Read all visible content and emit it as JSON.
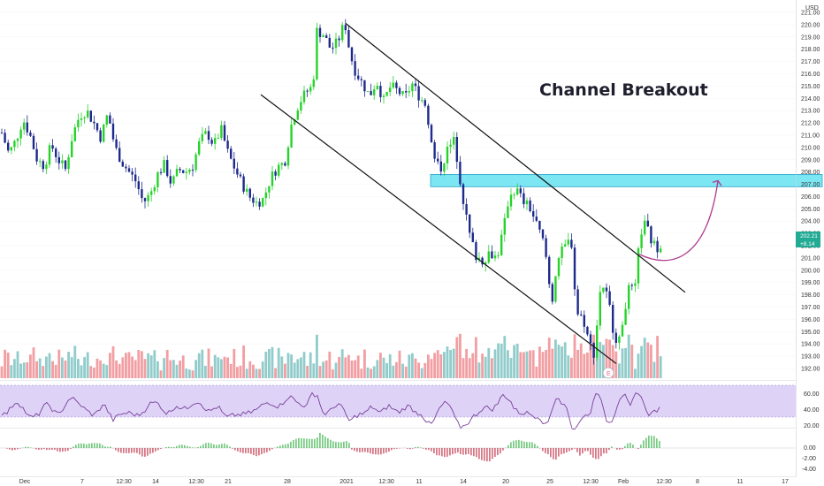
{
  "chart_data": {
    "type": "candlestick",
    "title": "Channel Breakout",
    "currency": "USD",
    "price_axis": {
      "min": 191.5,
      "max": 221.5,
      "ticks": [
        "221.00",
        "220.00",
        "219.00",
        "218.00",
        "217.00",
        "216.00",
        "215.00",
        "214.00",
        "213.00",
        "212.00",
        "211.00",
        "210.00",
        "209.00",
        "208.00",
        "207.00",
        "206.00",
        "205.00",
        "204.00",
        "203.00",
        "202.00",
        "201.00",
        "200.00",
        "199.00",
        "198.00",
        "197.00",
        "196.00",
        "195.00",
        "194.00",
        "193.00",
        "192.00"
      ],
      "last_price": "202.21",
      "last_change": "+8.14"
    },
    "x_axis_labels": [
      {
        "label": "Dec",
        "x": 28
      },
      {
        "label": "7",
        "x": 93
      },
      {
        "label": "12:30",
        "x": 140
      },
      {
        "label": "14",
        "x": 176
      },
      {
        "label": "12:30",
        "x": 222
      },
      {
        "label": "21",
        "x": 258
      },
      {
        "label": "28",
        "x": 325
      },
      {
        "label": "2021",
        "x": 392
      },
      {
        "label": "12:30",
        "x": 437
      },
      {
        "label": "11",
        "x": 474
      },
      {
        "label": "14",
        "x": 524
      },
      {
        "label": "20",
        "x": 572
      },
      {
        "label": "25",
        "x": 622
      },
      {
        "label": "12:30",
        "x": 668
      },
      {
        "label": "Feb",
        "x": 705
      },
      {
        "label": "12:30",
        "x": 751
      },
      {
        "label": "8",
        "x": 789
      },
      {
        "label": "11",
        "x": 837
      },
      {
        "label": "17",
        "x": 888
      }
    ],
    "price_path": [
      {
        "x": 2,
        "p": 211.2
      },
      {
        "x": 10,
        "p": 209.5
      },
      {
        "x": 18,
        "p": 210.6
      },
      {
        "x": 26,
        "p": 212.3
      },
      {
        "x": 34,
        "p": 211.0
      },
      {
        "x": 42,
        "p": 209.0
      },
      {
        "x": 50,
        "p": 208.5
      },
      {
        "x": 58,
        "p": 210.2
      },
      {
        "x": 66,
        "p": 209.0
      },
      {
        "x": 74,
        "p": 208.2
      },
      {
        "x": 82,
        "p": 211.0
      },
      {
        "x": 90,
        "p": 212.6
      },
      {
        "x": 98,
        "p": 213.0
      },
      {
        "x": 106,
        "p": 212.0
      },
      {
        "x": 114,
        "p": 210.8
      },
      {
        "x": 122,
        "p": 212.8
      },
      {
        "x": 130,
        "p": 210.0
      },
      {
        "x": 138,
        "p": 208.8
      },
      {
        "x": 146,
        "p": 208.0
      },
      {
        "x": 154,
        "p": 207.2
      },
      {
        "x": 162,
        "p": 205.5
      },
      {
        "x": 170,
        "p": 206.2
      },
      {
        "x": 178,
        "p": 207.8
      },
      {
        "x": 186,
        "p": 208.6
      },
      {
        "x": 194,
        "p": 207.0
      },
      {
        "x": 202,
        "p": 208.2
      },
      {
        "x": 210,
        "p": 208.0
      },
      {
        "x": 218,
        "p": 208.5
      },
      {
        "x": 226,
        "p": 210.5
      },
      {
        "x": 234,
        "p": 211.2
      },
      {
        "x": 242,
        "p": 210.2
      },
      {
        "x": 250,
        "p": 211.5
      },
      {
        "x": 258,
        "p": 209.5
      },
      {
        "x": 266,
        "p": 208.2
      },
      {
        "x": 274,
        "p": 207.0
      },
      {
        "x": 282,
        "p": 206.0
      },
      {
        "x": 290,
        "p": 205.5
      },
      {
        "x": 298,
        "p": 205.8
      },
      {
        "x": 306,
        "p": 207.5
      },
      {
        "x": 314,
        "p": 208.4
      },
      {
        "x": 322,
        "p": 208.8
      },
      {
        "x": 330,
        "p": 212.0
      },
      {
        "x": 338,
        "p": 213.6
      },
      {
        "x": 346,
        "p": 214.5
      },
      {
        "x": 354,
        "p": 215.0
      },
      {
        "x": 358,
        "p": 219.5
      },
      {
        "x": 366,
        "p": 219.2
      },
      {
        "x": 374,
        "p": 218.0
      },
      {
        "x": 382,
        "p": 218.6
      },
      {
        "x": 390,
        "p": 220.2
      },
      {
        "x": 396,
        "p": 217.6
      },
      {
        "x": 402,
        "p": 216.2
      },
      {
        "x": 410,
        "p": 215.2
      },
      {
        "x": 418,
        "p": 214.2
      },
      {
        "x": 426,
        "p": 215.4
      },
      {
        "x": 434,
        "p": 213.8
      },
      {
        "x": 442,
        "p": 215.0
      },
      {
        "x": 450,
        "p": 214.6
      },
      {
        "x": 458,
        "p": 214.0
      },
      {
        "x": 466,
        "p": 215.2
      },
      {
        "x": 474,
        "p": 214.2
      },
      {
        "x": 482,
        "p": 213.4
      },
      {
        "x": 490,
        "p": 209.2
      },
      {
        "x": 498,
        "p": 208.2
      },
      {
        "x": 506,
        "p": 209.8
      },
      {
        "x": 514,
        "p": 210.6
      },
      {
        "x": 522,
        "p": 206.6
      },
      {
        "x": 530,
        "p": 203.2
      },
      {
        "x": 538,
        "p": 201.2
      },
      {
        "x": 546,
        "p": 200.8
      },
      {
        "x": 554,
        "p": 201.5
      },
      {
        "x": 562,
        "p": 201.0
      },
      {
        "x": 570,
        "p": 203.5
      },
      {
        "x": 576,
        "p": 206.2
      },
      {
        "x": 584,
        "p": 206.6
      },
      {
        "x": 592,
        "p": 205.6
      },
      {
        "x": 600,
        "p": 205.0
      },
      {
        "x": 608,
        "p": 203.5
      },
      {
        "x": 616,
        "p": 202.0
      },
      {
        "x": 624,
        "p": 197.2
      },
      {
        "x": 630,
        "p": 200.8
      },
      {
        "x": 638,
        "p": 201.8
      },
      {
        "x": 646,
        "p": 202.6
      },
      {
        "x": 652,
        "p": 196.6
      },
      {
        "x": 660,
        "p": 196.0
      },
      {
        "x": 666,
        "p": 194.2
      },
      {
        "x": 672,
        "p": 193.2
      },
      {
        "x": 680,
        "p": 199.2
      },
      {
        "x": 688,
        "p": 197.6
      },
      {
        "x": 694,
        "p": 195.0
      },
      {
        "x": 700,
        "p": 194.0
      },
      {
        "x": 706,
        "p": 196.8
      },
      {
        "x": 712,
        "p": 198.6
      },
      {
        "x": 718,
        "p": 198.2
      },
      {
        "x": 724,
        "p": 203.0
      },
      {
        "x": 730,
        "p": 203.8
      },
      {
        "x": 736,
        "p": 202.5
      },
      {
        "x": 742,
        "p": 201.8
      },
      {
        "x": 748,
        "p": 202.2
      }
    ],
    "annotations": {
      "channel_upper": [
        {
          "x": 391,
          "p": 220.1
        },
        {
          "x": 775,
          "p": 198.2
        }
      ],
      "channel_lower": [
        {
          "x": 295,
          "p": 214.3
        },
        {
          "x": 697,
          "p": 192.4
        }
      ],
      "resistance_zone": {
        "x_start": 487,
        "x_end": 930,
        "p_low": 206.8,
        "p_high": 207.8
      },
      "projection_arrow": "from 723 @ 201.3 curving up to 812 @ 207.3"
    },
    "colors": {
      "up": "#22ab94",
      "up_candle": "#26d32a",
      "down": "#1e2a8c",
      "vol_up": "#7ec3c2",
      "vol_down": "#f08d92",
      "zone": "#7de6f3",
      "arrow": "#b03a8e",
      "rsi_band": "#d6c8f5",
      "rsi_line": "#7a3f9a"
    },
    "rsi": {
      "upper": "60.00",
      "lower": "40.00",
      "bottom": "20.00"
    },
    "macd": {
      "ticks": [
        "0.00",
        "-2.00",
        "-4.00"
      ]
    },
    "event_marker": "E"
  }
}
